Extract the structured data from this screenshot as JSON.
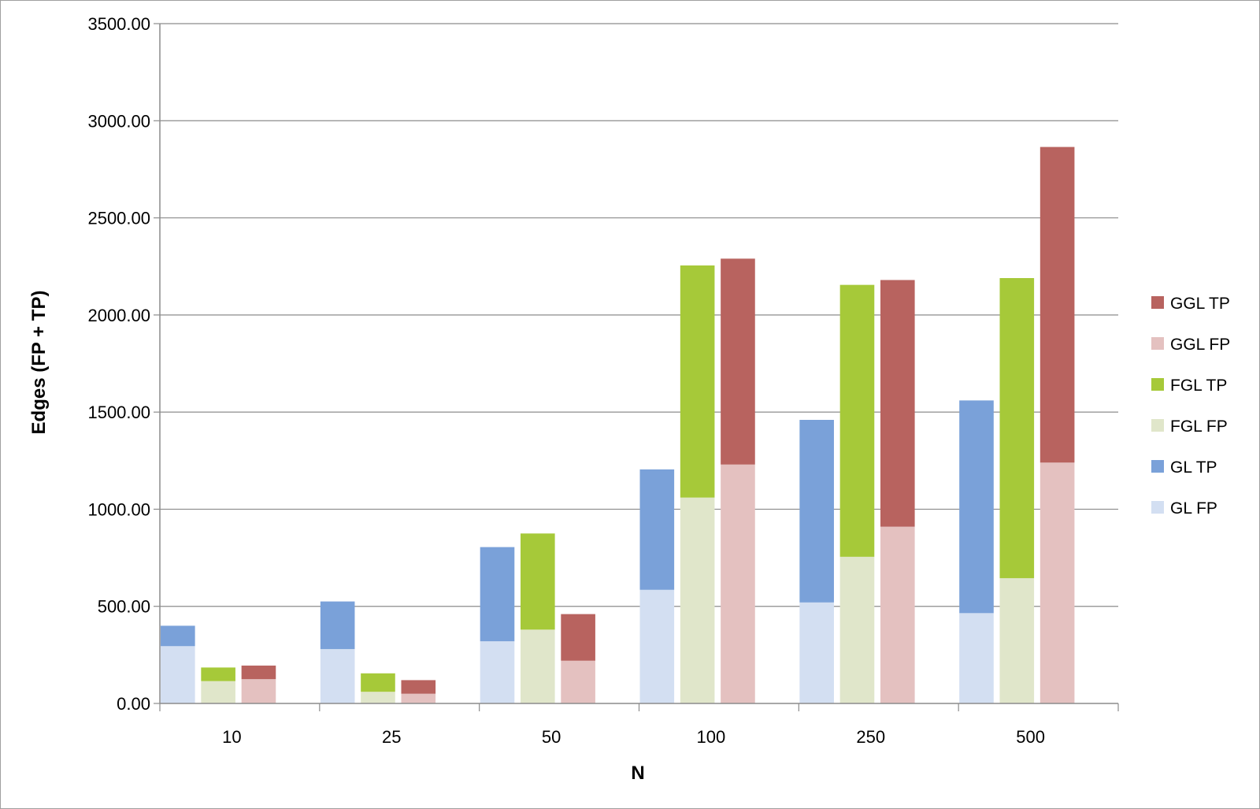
{
  "chart_data": {
    "type": "bar",
    "stacked": true,
    "title": "",
    "xlabel": "N",
    "ylabel": "Edges (FP + TP)",
    "ylim": [
      0,
      3500
    ],
    "yticks": [
      "0.00",
      "500.00",
      "1000.00",
      "1500.00",
      "2000.00",
      "2500.00",
      "3000.00",
      "3500.00"
    ],
    "grid": true,
    "legend_position": "right",
    "categories": [
      "10",
      "25",
      "50",
      "100",
      "250",
      "500"
    ],
    "groups": [
      {
        "name": "GL",
        "stack": [
          {
            "name": "GL FP",
            "color": "#d3dff2",
            "values": [
              295,
              280,
              320,
              585,
              520,
              465
            ]
          },
          {
            "name": "GL TP",
            "color": "#7aa1d9",
            "values": [
              105,
              245,
              485,
              620,
              940,
              1095
            ]
          }
        ]
      },
      {
        "name": "FGL",
        "stack": [
          {
            "name": "FGL FP",
            "color": "#e0e6ca",
            "values": [
              115,
              60,
              380,
              1060,
              755,
              645
            ]
          },
          {
            "name": "FGL TP",
            "color": "#a6c939",
            "values": [
              70,
              95,
              495,
              1195,
              1400,
              1545
            ]
          }
        ]
      },
      {
        "name": "GGL",
        "stack": [
          {
            "name": "GGL FP",
            "color": "#e4c1c0",
            "values": [
              125,
              50,
              220,
              1230,
              910,
              1240
            ]
          },
          {
            "name": "GGL TP",
            "color": "#b8635f",
            "values": [
              70,
              70,
              240,
              1060,
              1270,
              1625
            ]
          }
        ]
      }
    ],
    "legend": [
      {
        "label": "GGL TP",
        "color": "#b8635f"
      },
      {
        "label": "GGL FP",
        "color": "#e4c1c0"
      },
      {
        "label": "FGL TP",
        "color": "#a6c939"
      },
      {
        "label": "FGL FP",
        "color": "#e0e6ca"
      },
      {
        "label": "GL TP",
        "color": "#7aa1d9"
      },
      {
        "label": "GL FP",
        "color": "#d3dff2"
      }
    ]
  }
}
